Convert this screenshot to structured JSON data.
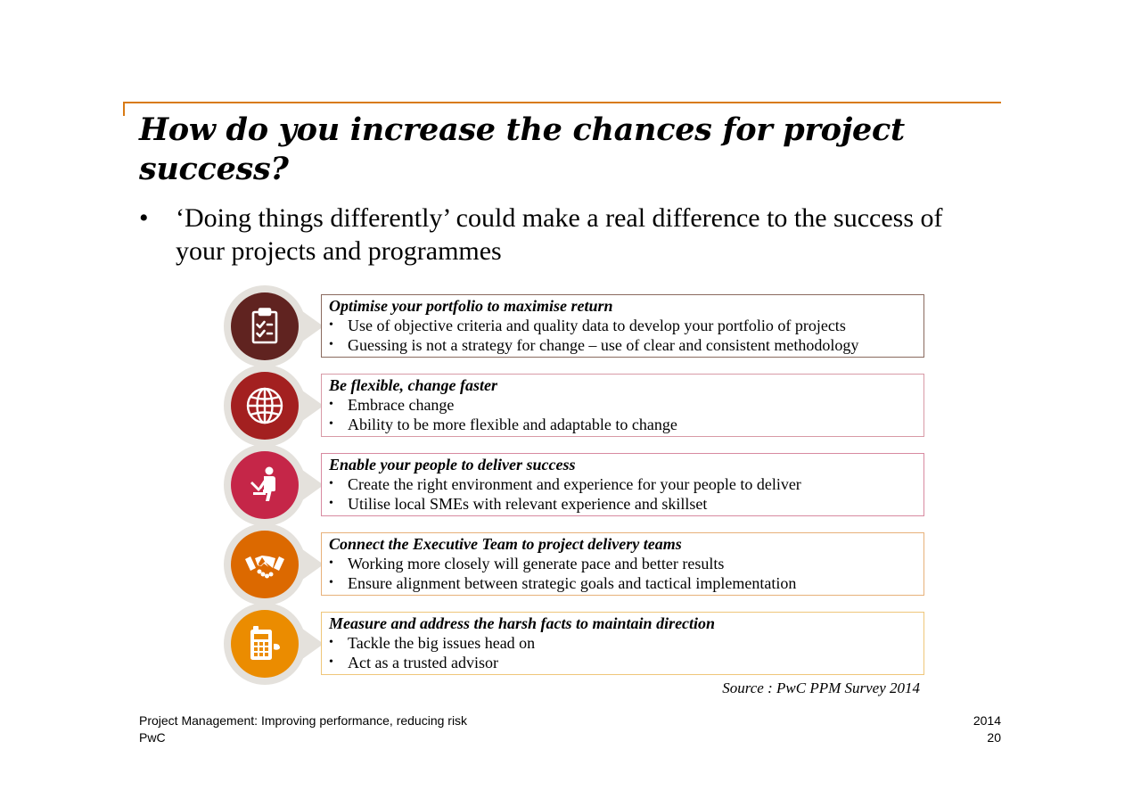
{
  "slide": {
    "title": "How do you increase the chances for project success?",
    "intro_bullet": "‘Doing things differently’ could make a real difference to the success of your projects and programmes"
  },
  "items": [
    {
      "heading": "Optimise your portfolio to maximise return",
      "points": [
        "Use of objective criteria and quality data to develop your portfolio of projects",
        "Guessing is not a strategy for change – use of clear and consistent methodology"
      ],
      "icon": "clipboard-checklist-icon",
      "color": "#602320",
      "border_color": "#8a6a5e"
    },
    {
      "heading": "Be flexible, change faster",
      "points": [
        "Embrace change",
        "Ability to be more flexible and adaptable to change"
      ],
      "icon": "globe-icon",
      "color": "#a32020",
      "border_color": "#d89aa6"
    },
    {
      "heading": "Enable your people to deliver success",
      "points": [
        "Create the right environment and experience for your people to deliver",
        "Utilise local SMEs with relevant experience and skillset"
      ],
      "icon": "person-at-laptop-icon",
      "color": "#c52648",
      "border_color": "#d88aa0"
    },
    {
      "heading": "Connect the Executive Team to project delivery teams",
      "points": [
        "Working more closely will generate pace and better results",
        "Ensure alignment between strategic goals and tactical implementation"
      ],
      "icon": "handshake-icon",
      "color": "#dc6900",
      "border_color": "#e7b17a"
    },
    {
      "heading": "Measure  and address the harsh facts to maintain direction",
      "points": [
        "Tackle the big issues head on",
        "Act as a trusted advisor"
      ],
      "icon": "calculator-icon",
      "color": "#eb8c00",
      "border_color": "#efc67a"
    }
  ],
  "source": "Source : PwC PPM Survey 2014",
  "footer": {
    "left_line1": "Project Management: Improving performance, reducing risk",
    "left_line2": "PwC",
    "right_line1": "2014",
    "right_line2": "20"
  }
}
